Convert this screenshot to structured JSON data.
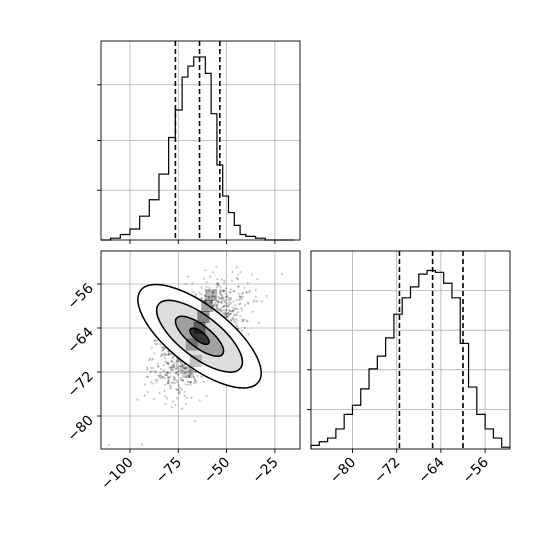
{
  "chart_data": {
    "type": "corner",
    "grid": true,
    "panels": [
      {
        "id": "hist-x",
        "type": "histogram",
        "xlim": [
          -115,
          -12
        ],
        "ylim": [
          0,
          1.0
        ],
        "x_ticks": [
          -100,
          -75,
          -50,
          -25
        ],
        "quantile_lines": [
          -76.5,
          -64.0,
          -53.5
        ],
        "bin_edges": [
          -115,
          -110,
          -105,
          -100,
          -95,
          -90,
          -85,
          -80,
          -76.5,
          -73,
          -70,
          -67,
          -64,
          -61,
          -58,
          -55,
          -52,
          -49,
          -46,
          -43,
          -40,
          -35,
          -30,
          -25,
          -20,
          -15
        ],
        "counts": [
          0.0,
          0.01,
          0.03,
          0.06,
          0.13,
          0.22,
          0.36,
          0.56,
          0.71,
          0.89,
          0.95,
          1.0,
          1.0,
          0.91,
          0.69,
          0.41,
          0.24,
          0.15,
          0.08,
          0.03,
          0.02,
          0.01,
          0.0,
          0.0,
          0.0
        ]
      },
      {
        "id": "scatter-xy",
        "type": "2d-density",
        "xlim": [
          -115,
          -12
        ],
        "ylim": [
          -86,
          -50
        ],
        "x_ticks": [
          -100,
          -75,
          -50,
          -25
        ],
        "x_tick_labels": [
          "−100",
          "−75",
          "−50",
          "−25"
        ],
        "y_ticks": [
          -56,
          -64,
          -72,
          -80
        ],
        "y_tick_labels": [
          "−56",
          "−64",
          "−72",
          "−80"
        ],
        "center": [
          -64,
          -65.5
        ],
        "contours": [
          {
            "level": "outer",
            "rx": 19,
            "ry": 11.5
          },
          {
            "level": "middle",
            "rx": 13,
            "ry": 8
          },
          {
            "level": "inner",
            "rx": 7,
            "ry": 4.5
          },
          {
            "level": "core",
            "rx": 3,
            "ry": 1.8
          }
        ]
      },
      {
        "id": "hist-y",
        "type": "histogram",
        "xlim": [
          -87.5,
          -51.5
        ],
        "ylim": [
          0,
          1.0
        ],
        "x_ticks": [
          -80,
          -72,
          -64,
          -56
        ],
        "x_tick_labels": [
          "−80",
          "−72",
          "−64",
          "−56"
        ],
        "quantile_lines": [
          -71.5,
          -65.5,
          -60.0
        ],
        "bin_edges": [
          -87.5,
          -86,
          -84.5,
          -83,
          -81.5,
          -80,
          -78.5,
          -77,
          -75.5,
          -74,
          -72.5,
          -71,
          -69.5,
          -68,
          -66.5,
          -65,
          -63.5,
          -62,
          -60.5,
          -59,
          -57.5,
          -56,
          -54.5,
          -53,
          -51.5
        ],
        "counts": [
          0.02,
          0.04,
          0.06,
          0.11,
          0.19,
          0.24,
          0.33,
          0.44,
          0.51,
          0.61,
          0.74,
          0.83,
          0.89,
          0.96,
          0.98,
          0.97,
          0.91,
          0.83,
          0.58,
          0.34,
          0.19,
          0.11,
          0.06,
          0.01
        ]
      }
    ]
  }
}
